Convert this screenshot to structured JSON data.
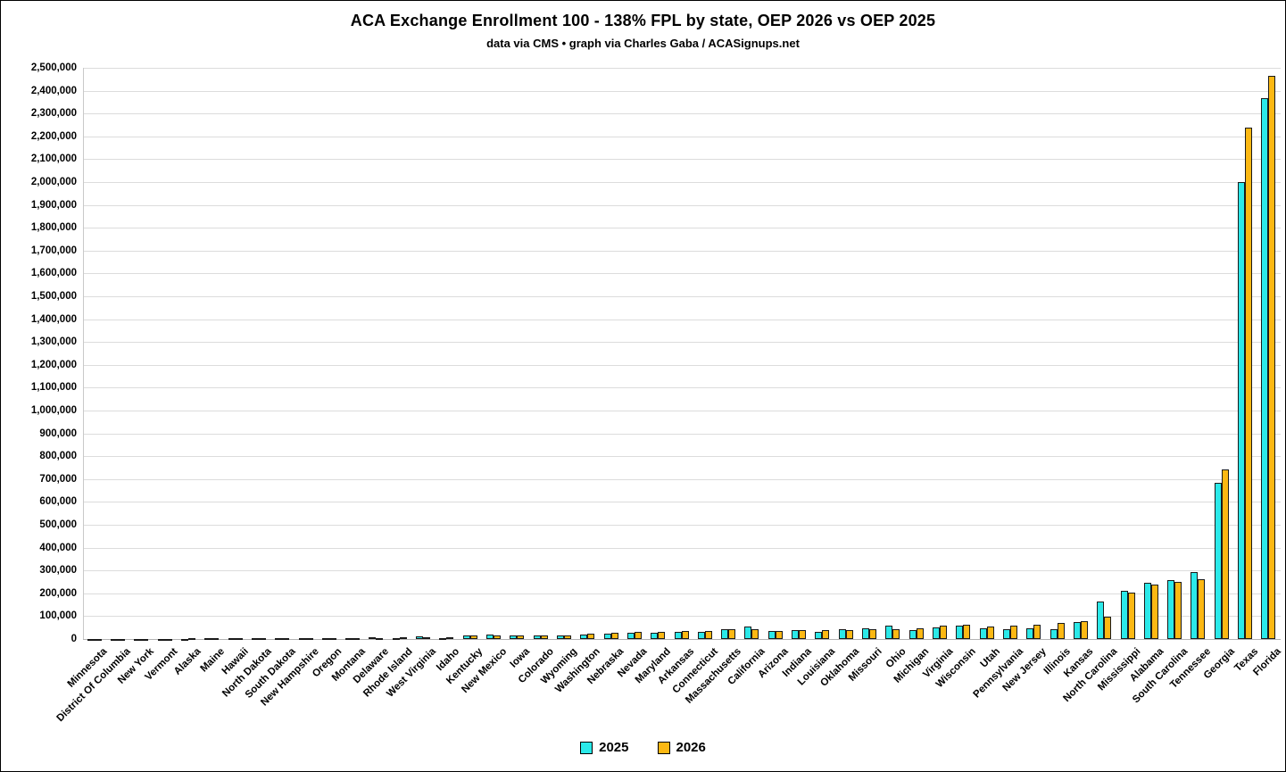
{
  "header": {
    "title": "ACA Exchange Enrollment 100 - 138% FPL by state, OEP 2026 vs OEP 2025",
    "subtitle": "data via CMS • graph via Charles Gaba / ACASignups.net"
  },
  "legend": {
    "items": [
      {
        "label": "2025",
        "color": "#2BE9E9"
      },
      {
        "label": "2026",
        "color": "#FCB813"
      }
    ]
  },
  "chart_data": {
    "type": "bar",
    "title": "ACA Exchange Enrollment 100 - 138% FPL by state, OEP 2026 vs OEP 2025",
    "subtitle": "data via CMS • graph via Charles Gaba / ACASignups.net",
    "ylim": [
      0,
      2500000
    ],
    "ytick_step": 100000,
    "grid": true,
    "legend_position": "bottom",
    "bar_outline": "#1a1a1a",
    "categories": [
      "Minnesota",
      "District Of Columbia",
      "New York",
      "Vermont",
      "Alaska",
      "Maine",
      "Hawaii",
      "North Dakota",
      "South Dakota",
      "New Hampshire",
      "Oregon",
      "Montana",
      "Delaware",
      "Rhode Island",
      "West Virginia",
      "Idaho",
      "Kentucky",
      "New Mexico",
      "Iowa",
      "Colorado",
      "Wyoming",
      "Washington",
      "Nebraska",
      "Nevada",
      "Maryland",
      "Arkansas",
      "Connecticut",
      "Massachusetts",
      "California",
      "Arizona",
      "Indiana",
      "Louisiana",
      "Oklahoma",
      "Missouri",
      "Ohio",
      "Michigan",
      "Virginia",
      "Wisconsin",
      "Utah",
      "Pennsylvania",
      "New Jersey",
      "Illinois",
      "Kansas",
      "North Carolina",
      "Mississippi",
      "Alabama",
      "South Carolina",
      "Tennessee",
      "Georgia",
      "Texas",
      "Florida"
    ],
    "series": [
      {
        "name": "2025",
        "color": "#2BE9E9",
        "values": [
          400,
          700,
          1200,
          1500,
          1900,
          2300,
          2700,
          3100,
          3500,
          3900,
          4300,
          4700,
          9000,
          5000,
          12000,
          6000,
          17000,
          19000,
          15000,
          16000,
          14000,
          19000,
          25000,
          28000,
          29000,
          30000,
          31000,
          42000,
          55000,
          35000,
          38000,
          33000,
          42000,
          48000,
          60000,
          40000,
          52000,
          58000,
          48000,
          45000,
          48000,
          43000,
          75000,
          165000,
          210000,
          245000,
          258000,
          293000,
          685000,
          2000000,
          2368000
        ]
      },
      {
        "name": "2026",
        "color": "#FCB813",
        "values": [
          600,
          900,
          1400,
          1700,
          2200,
          2600,
          3000,
          3400,
          3800,
          4200,
          4600,
          5000,
          5500,
          6500,
          7500,
          8500,
          15000,
          15500,
          16000,
          16500,
          17000,
          23000,
          28000,
          31000,
          33000,
          34000,
          36000,
          44000,
          43000,
          37000,
          39000,
          40000,
          41000,
          42000,
          44000,
          47000,
          57000,
          61000,
          55000,
          58000,
          64000,
          70000,
          80000,
          96000,
          203000,
          239000,
          250000,
          262000,
          742000,
          2238000,
          2464000
        ]
      }
    ]
  }
}
